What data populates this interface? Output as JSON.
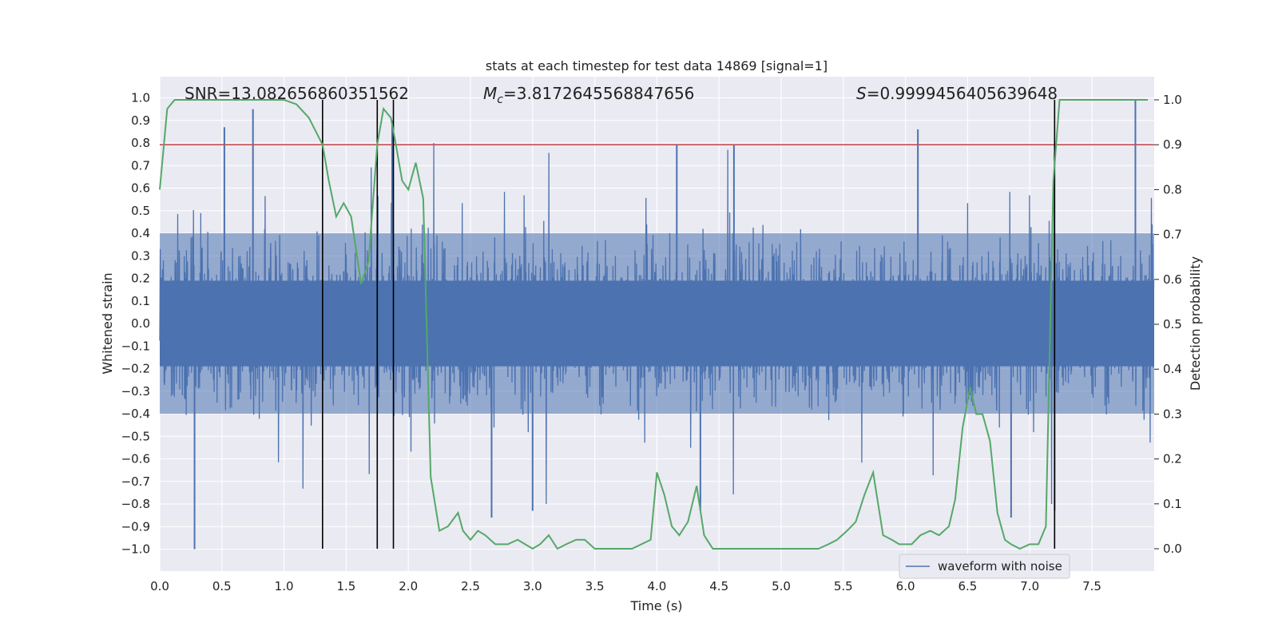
{
  "chart_data": {
    "type": "line",
    "title": "stats at each timestep for test data 14869 [signal=1]",
    "xlabel": "Time (s)",
    "ylabel": "Whitened strain",
    "y2label": "Detection probability",
    "xlim": [
      0.0,
      8.0
    ],
    "ylim": [
      -1.1,
      1.1
    ],
    "y2lim": [
      -0.05,
      1.05
    ],
    "xticks": [
      0.0,
      0.5,
      1.0,
      1.5,
      2.0,
      2.5,
      3.0,
      3.5,
      4.0,
      4.5,
      5.0,
      5.5,
      6.0,
      6.5,
      7.0,
      7.5
    ],
    "xtick_labels": [
      "0.0",
      "0.5",
      "1.0",
      "1.5",
      "2.0",
      "2.5",
      "3.0",
      "3.5",
      "4.0",
      "4.5",
      "5.0",
      "5.5",
      "6.0",
      "6.5",
      "7.0",
      "7.5"
    ],
    "yticks": [
      -1.0,
      -0.9,
      -0.8,
      -0.7,
      -0.6,
      -0.5,
      -0.4,
      -0.3,
      -0.2,
      -0.1,
      0.0,
      0.1,
      0.2,
      0.3,
      0.4,
      0.5,
      0.6,
      0.7,
      0.8,
      0.9,
      1.0
    ],
    "ytick_labels": [
      "−1.0",
      "−0.9",
      "−0.8",
      "−0.7",
      "−0.6",
      "−0.5",
      "−0.4",
      "−0.3",
      "−0.2",
      "−0.1",
      "0.0",
      "0.1",
      "0.2",
      "0.3",
      "0.4",
      "0.5",
      "0.6",
      "0.7",
      "0.8",
      "0.9",
      "1.0"
    ],
    "y2ticks": [
      0.0,
      0.1,
      0.2,
      0.3,
      0.4,
      0.5,
      0.6,
      0.7,
      0.8,
      0.9,
      1.0
    ],
    "y2tick_labels": [
      "0.0",
      "0.1",
      "0.2",
      "0.3",
      "0.4",
      "0.5",
      "0.6",
      "0.7",
      "0.8",
      "0.9",
      "1.0"
    ],
    "annotations": {
      "snr": "SNR=13.082656860351562",
      "mc_symbol": "M",
      "mc_sub": "c",
      "mc_value": "=3.8172645568847656",
      "s_symbol": "S",
      "s_value": "=0.9999456405639648"
    },
    "legend": {
      "label": "waveform with noise",
      "placement": "lower-right"
    },
    "threshold": {
      "axis": "right",
      "value": 0.9,
      "color": "#c44e52"
    },
    "vlines": [
      1.31,
      1.75,
      1.88,
      7.2
    ],
    "waveform": {
      "name": "waveform with noise",
      "color": "#4c72b0",
      "sample_rate": 512,
      "envelope_pos": 0.4,
      "envelope_neg": -0.4,
      "spikes": [
        {
          "t": 0.28,
          "v": -1.0
        },
        {
          "t": 0.52,
          "v": 0.87
        },
        {
          "t": 0.75,
          "v": 0.95
        },
        {
          "t": 1.87,
          "v": 0.9
        },
        {
          "t": 2.67,
          "v": -0.86
        },
        {
          "t": 3.0,
          "v": -0.83
        },
        {
          "t": 4.35,
          "v": -0.83
        },
        {
          "t": 4.16,
          "v": 0.79
        },
        {
          "t": 4.62,
          "v": 0.79
        },
        {
          "t": 6.1,
          "v": 0.86
        },
        {
          "t": 6.85,
          "v": -0.86
        },
        {
          "t": 7.2,
          "v": -0.83
        },
        {
          "t": 7.85,
          "v": 0.99
        }
      ]
    },
    "probability": {
      "name": "detection probability",
      "color": "#55a868",
      "t": [
        0.0,
        0.06,
        0.12,
        0.4,
        0.8,
        1.0,
        1.1,
        1.2,
        1.31,
        1.36,
        1.42,
        1.48,
        1.54,
        1.62,
        1.68,
        1.75,
        1.8,
        1.86,
        1.9,
        1.95,
        2.0,
        2.06,
        2.12,
        2.18,
        2.25,
        2.32,
        2.4,
        2.44,
        2.5,
        2.56,
        2.62,
        2.7,
        2.8,
        2.88,
        3.0,
        3.06,
        3.13,
        3.2,
        3.27,
        3.35,
        3.42,
        3.5,
        3.6,
        3.8,
        3.95,
        4.0,
        4.06,
        4.12,
        4.18,
        4.25,
        4.32,
        4.38,
        4.45,
        4.6,
        4.7,
        5.0,
        5.3,
        5.38,
        5.45,
        5.53,
        5.6,
        5.67,
        5.74,
        5.82,
        5.89,
        5.95,
        6.05,
        6.12,
        6.2,
        6.27,
        6.35,
        6.4,
        6.46,
        6.52,
        6.57,
        6.62,
        6.68,
        6.74,
        6.8,
        6.85,
        6.92,
        7.0,
        7.07,
        7.13,
        7.19,
        7.24,
        7.3,
        7.5,
        7.8,
        7.95
      ],
      "p": [
        0.8,
        0.98,
        1.0,
        1.0,
        1.0,
        1.0,
        0.99,
        0.96,
        0.9,
        0.82,
        0.74,
        0.77,
        0.74,
        0.59,
        0.64,
        0.9,
        0.98,
        0.96,
        0.9,
        0.82,
        0.8,
        0.86,
        0.78,
        0.16,
        0.04,
        0.05,
        0.08,
        0.04,
        0.02,
        0.04,
        0.03,
        0.01,
        0.01,
        0.02,
        0.0,
        0.01,
        0.03,
        0.0,
        0.01,
        0.02,
        0.02,
        0.0,
        0.0,
        0.0,
        0.02,
        0.17,
        0.12,
        0.05,
        0.03,
        0.06,
        0.14,
        0.03,
        0.0,
        0.0,
        0.0,
        0.0,
        0.0,
        0.01,
        0.02,
        0.04,
        0.06,
        0.12,
        0.17,
        0.03,
        0.02,
        0.01,
        0.01,
        0.03,
        0.04,
        0.03,
        0.05,
        0.11,
        0.27,
        0.36,
        0.3,
        0.3,
        0.24,
        0.08,
        0.02,
        0.01,
        0.0,
        0.01,
        0.01,
        0.05,
        0.82,
        1.0,
        1.0,
        1.0,
        1.0,
        1.0
      ]
    }
  }
}
